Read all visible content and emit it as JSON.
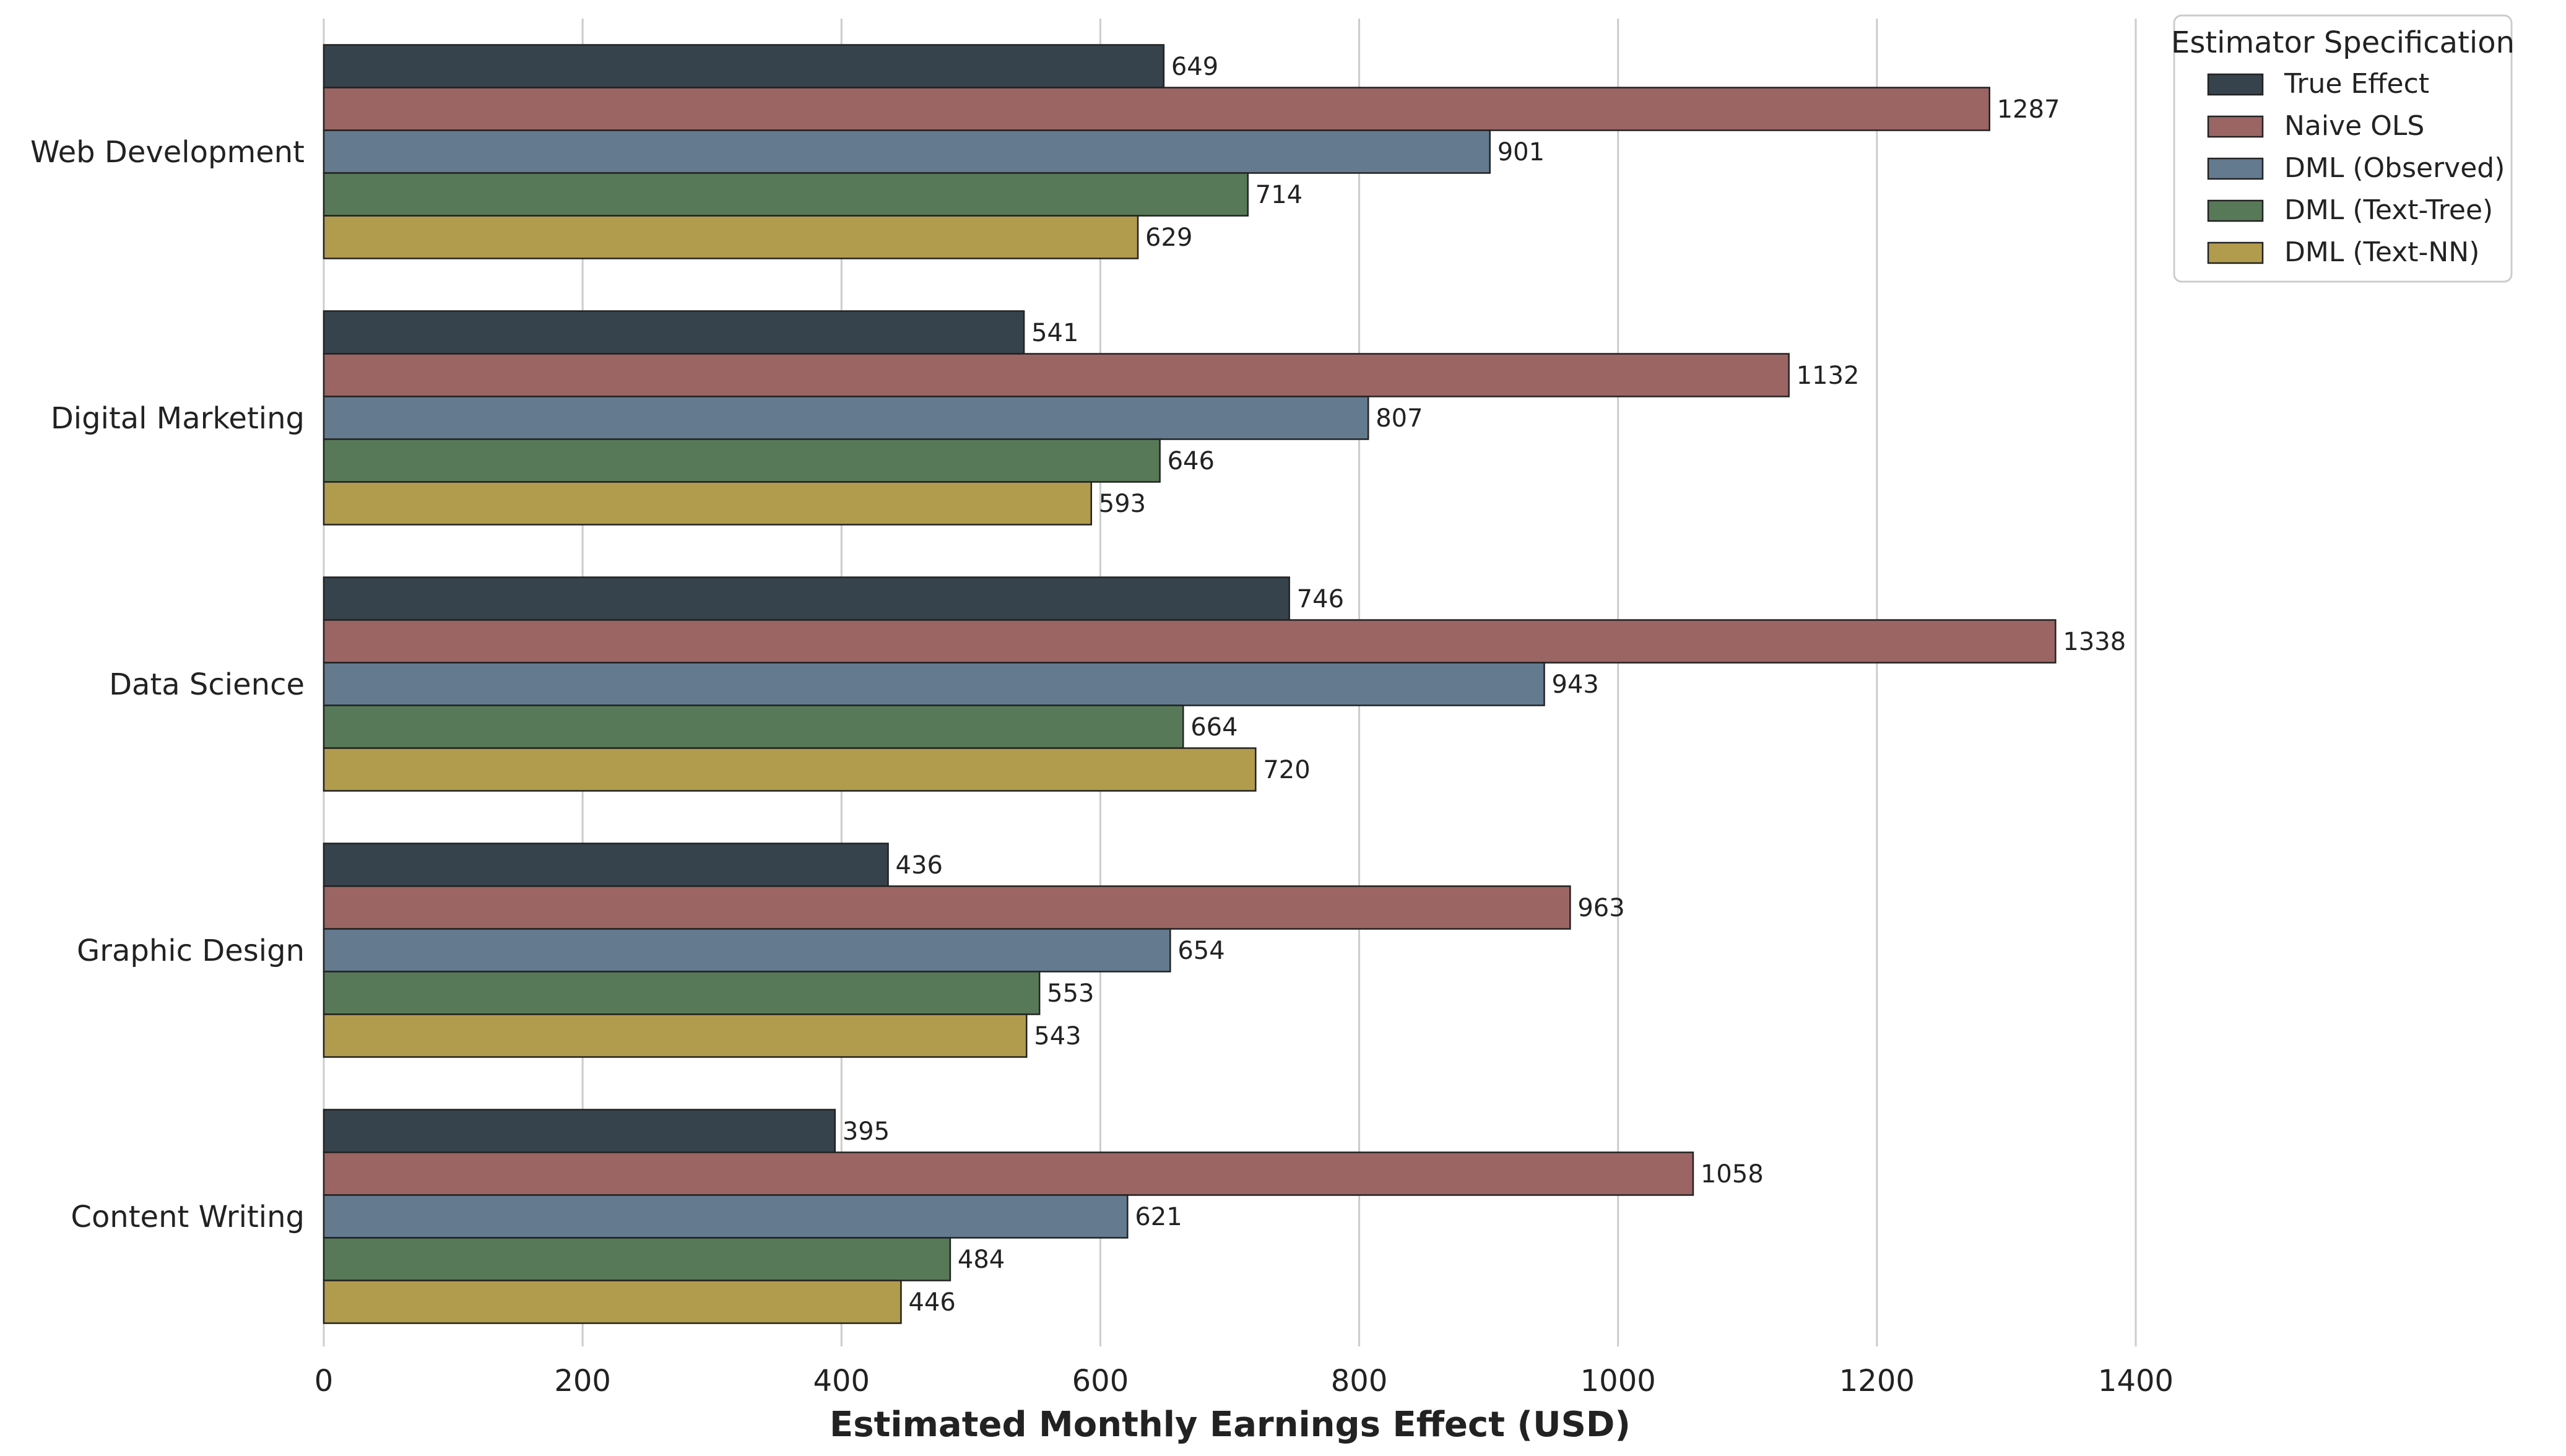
{
  "chart_data": {
    "type": "bar",
    "orientation": "horizontal",
    "categories": [
      "Web Development",
      "Digital Marketing",
      "Data Science",
      "Graphic Design",
      "Content Writing"
    ],
    "series": [
      {
        "name": "True Effect",
        "color": "#37434c",
        "values": [
          649,
          541,
          746,
          436,
          395
        ]
      },
      {
        "name": "Naive OLS",
        "color": "#9b6564",
        "values": [
          1287,
          1132,
          1338,
          963,
          1058
        ]
      },
      {
        "name": "DML (Observed)",
        "color": "#647a8f",
        "values": [
          901,
          807,
          943,
          654,
          621
        ]
      },
      {
        "name": "DML (Text-Tree)",
        "color": "#587958",
        "values": [
          714,
          646,
          664,
          553,
          484
        ]
      },
      {
        "name": "DML (Text-NN)",
        "color": "#b19b4d",
        "values": [
          629,
          593,
          720,
          543,
          446
        ]
      }
    ],
    "xlabel": "Estimated Monthly Earnings Effect (USD)",
    "ylabel": "",
    "xlim": [
      0,
      1400
    ],
    "xticks": [
      0,
      200,
      400,
      600,
      800,
      1000,
      1200,
      1400
    ],
    "grid": true,
    "legend": {
      "title": "Estimator Specification",
      "position": "top-right"
    }
  }
}
